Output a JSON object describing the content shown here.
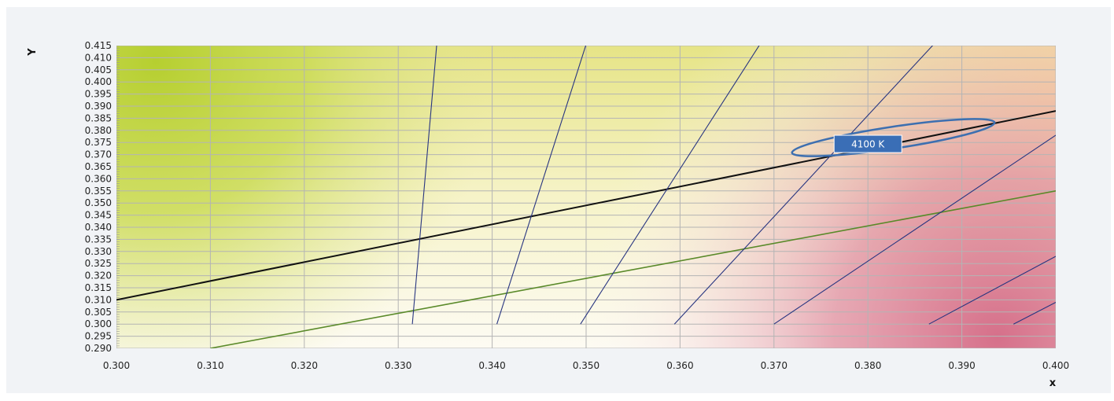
{
  "chart_data": {
    "type": "line",
    "xlabel": "x",
    "ylabel": "Y",
    "xlim": [
      0.3,
      0.4
    ],
    "ylim": [
      0.29,
      0.415
    ],
    "x_ticks": [
      "0.300",
      "0.310",
      "0.320",
      "0.330",
      "0.340",
      "0.350",
      "0.360",
      "0.370",
      "0.380",
      "0.390",
      "0.400"
    ],
    "y_ticks": [
      "0.415",
      "0.410",
      "0.405",
      "0.400",
      "0.395",
      "0.390",
      "0.385",
      "0.380",
      "0.375",
      "0.370",
      "0.365",
      "0.360",
      "0.355",
      "0.350",
      "0.345",
      "0.340",
      "0.335",
      "0.330",
      "0.325",
      "0.320",
      "0.315",
      "0.310",
      "0.305",
      "0.300",
      "0.295",
      "0.290"
    ],
    "grid": true,
    "background_gradient": {
      "colors": {
        "green": "#b9d23a",
        "yellow": "#e9e07a",
        "orange": "#f3c878",
        "white": "#fbf7f3",
        "pink": "#d9778e"
      }
    },
    "series": [
      {
        "role": "planckian",
        "color": "#111111",
        "width": 2,
        "points": [
          [
            0.3,
            0.31
          ],
          [
            0.4,
            0.388
          ]
        ]
      },
      {
        "role": "lower",
        "color": "#5a8a2a",
        "width": 1.6,
        "points": [
          [
            0.31,
            0.29
          ],
          [
            0.4,
            0.355
          ]
        ]
      },
      {
        "role": "iso",
        "color": "#283580",
        "width": 1.1,
        "points": [
          [
            0.3315,
            0.3
          ],
          [
            0.3341,
            0.4155
          ]
        ]
      },
      {
        "role": "iso",
        "color": "#283580",
        "width": 1.1,
        "points": [
          [
            0.3405,
            0.3
          ],
          [
            0.35,
            0.4155
          ]
        ]
      },
      {
        "role": "iso",
        "color": "#283580",
        "width": 1.1,
        "points": [
          [
            0.3494,
            0.3
          ],
          [
            0.3685,
            0.4155
          ]
        ]
      },
      {
        "role": "iso",
        "color": "#283580",
        "width": 1.1,
        "points": [
          [
            0.3594,
            0.3
          ],
          [
            0.387,
            0.4155
          ]
        ]
      },
      {
        "role": "iso",
        "color": "#283580",
        "width": 1.1,
        "points": [
          [
            0.37,
            0.3
          ],
          [
            0.4,
            0.378
          ]
        ]
      },
      {
        "role": "iso",
        "color": "#283580",
        "width": 1.1,
        "points": [
          [
            0.3865,
            0.3
          ],
          [
            0.4,
            0.328
          ]
        ]
      },
      {
        "role": "iso",
        "color": "#283580",
        "width": 1.1,
        "points": [
          [
            0.3955,
            0.3
          ],
          [
            0.4,
            0.309
          ]
        ]
      }
    ],
    "ellipse": {
      "center": [
        0.3827,
        0.377
      ],
      "rx": 0.0109,
      "ry": 0.0045,
      "angle_deg": 8.5,
      "color": "#3d6fb0",
      "width": 2.5
    },
    "annotation": {
      "text": "4100  K",
      "at": [
        0.38,
        0.3744
      ],
      "bg_color": "#3a6eb6",
      "border_color": "#ffffff"
    }
  }
}
